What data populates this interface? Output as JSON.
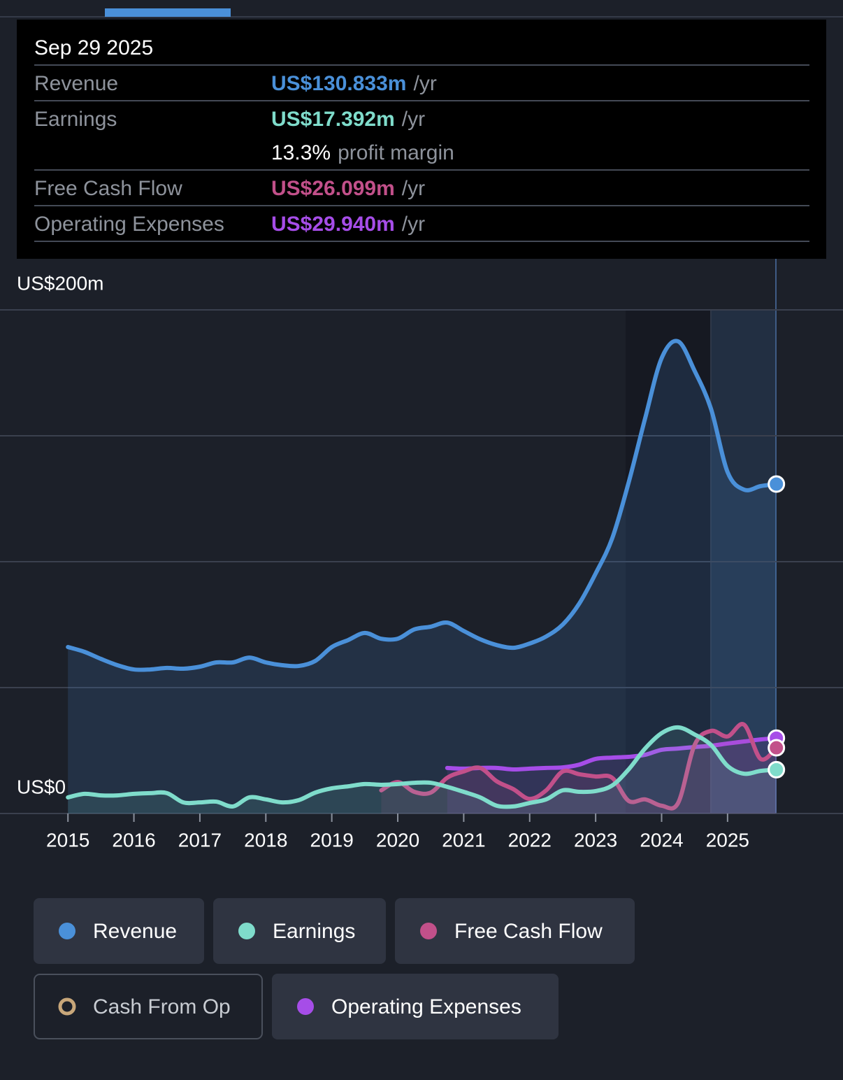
{
  "chart_data": {
    "type": "line",
    "tooltip": {
      "date": "Sep 29 2025",
      "rows": [
        {
          "label": "Revenue",
          "value": "US$130.833m",
          "unit": "/yr",
          "series": 0
        },
        {
          "label": "Earnings",
          "value": "US$17.392m",
          "unit": "/yr",
          "series": 1
        },
        {
          "value": "13.3%",
          "unit": "profit margin"
        },
        {
          "label": "Free Cash Flow",
          "value": "US$26.099m",
          "unit": "/yr",
          "series": 2
        },
        {
          "label": "Operating Expenses",
          "value": "US$29.940m",
          "unit": "/yr",
          "series": 4
        }
      ]
    },
    "x": [
      2015,
      2015.25,
      2015.5,
      2015.75,
      2016,
      2016.25,
      2016.5,
      2016.75,
      2017,
      2017.25,
      2017.5,
      2017.75,
      2018,
      2018.25,
      2018.5,
      2018.75,
      2019,
      2019.25,
      2019.5,
      2019.75,
      2020,
      2020.25,
      2020.5,
      2020.75,
      2021,
      2021.25,
      2021.5,
      2021.75,
      2022,
      2022.25,
      2022.5,
      2022.75,
      2023,
      2023.25,
      2023.5,
      2023.75,
      2024,
      2024.25,
      2024.5,
      2024.75,
      2025,
      2025.25,
      2025.5,
      2025.74
    ],
    "series": [
      {
        "name": "Revenue",
        "color": "#4a90d9",
        "values": [
          66.1,
          64.2,
          61.4,
          58.9,
          57.2,
          57.2,
          57.8,
          57.5,
          58.3,
          60,
          60,
          61.9,
          60,
          58.9,
          58.6,
          60.6,
          66.1,
          68.9,
          71.7,
          69.4,
          69.4,
          73.1,
          74.2,
          75.8,
          72.5,
          69.2,
          66.9,
          65.8,
          67.5,
          70.3,
          75,
          83.3,
          95.3,
          109.2,
          131.4,
          156.9,
          180.8,
          187.5,
          175.8,
          160.6,
          135.6,
          128.6,
          130,
          130.833
        ]
      },
      {
        "name": "Earnings",
        "color": "#7fdccb",
        "values": [
          6.4,
          7.8,
          7.2,
          7.2,
          7.8,
          8.1,
          8.1,
          4.4,
          4.4,
          4.7,
          2.8,
          6.4,
          5.6,
          4.4,
          5.3,
          8.3,
          10,
          10.8,
          11.7,
          11.4,
          11.7,
          12.2,
          12.2,
          10.6,
          8.6,
          6.4,
          3.1,
          2.8,
          4.2,
          5.6,
          9.2,
          8.6,
          8.9,
          11.1,
          17.5,
          25.8,
          31.9,
          34.2,
          31.4,
          27.2,
          18.9,
          15.8,
          16.9,
          17.392
        ]
      },
      {
        "name": "Free Cash Flow",
        "color": "#c2508a",
        "values": [
          null,
          null,
          null,
          null,
          null,
          null,
          null,
          null,
          null,
          null,
          null,
          null,
          null,
          null,
          null,
          null,
          null,
          null,
          null,
          9.2,
          12.5,
          8.6,
          8.3,
          14.2,
          16.7,
          18.1,
          12.8,
          9.7,
          5.8,
          9.2,
          16.7,
          15.6,
          14.7,
          14.2,
          5,
          5.6,
          3.1,
          4.2,
          27.2,
          32.8,
          30.6,
          35.3,
          21.7,
          26.099
        ]
      },
      {
        "name": "Cash From Op",
        "color": "#c8a77a",
        "visible": false
      },
      {
        "name": "Operating Expenses",
        "color": "#a64de8",
        "values": [
          null,
          null,
          null,
          null,
          null,
          null,
          null,
          null,
          null,
          null,
          null,
          null,
          null,
          null,
          null,
          null,
          null,
          null,
          null,
          null,
          null,
          null,
          null,
          18.1,
          17.8,
          18.1,
          18.1,
          17.5,
          17.8,
          18.1,
          18.3,
          19.4,
          21.7,
          22.2,
          22.5,
          23.3,
          25.3,
          25.8,
          26.4,
          26.9,
          27.8,
          28.6,
          29.4,
          29.94
        ]
      }
    ],
    "xlim": [
      2013.97,
      2026.75
    ],
    "xticks": [
      2015,
      2016,
      2017,
      2018,
      2019,
      2020,
      2021,
      2022,
      2023,
      2024,
      2025
    ],
    "ylim": [
      0,
      200
    ],
    "yticks": [
      {
        "value": 0,
        "label": "US$0"
      },
      {
        "value": 200,
        "label": "US$200m"
      }
    ],
    "ygrid": [
      0,
      50,
      100,
      150,
      200
    ]
  }
}
